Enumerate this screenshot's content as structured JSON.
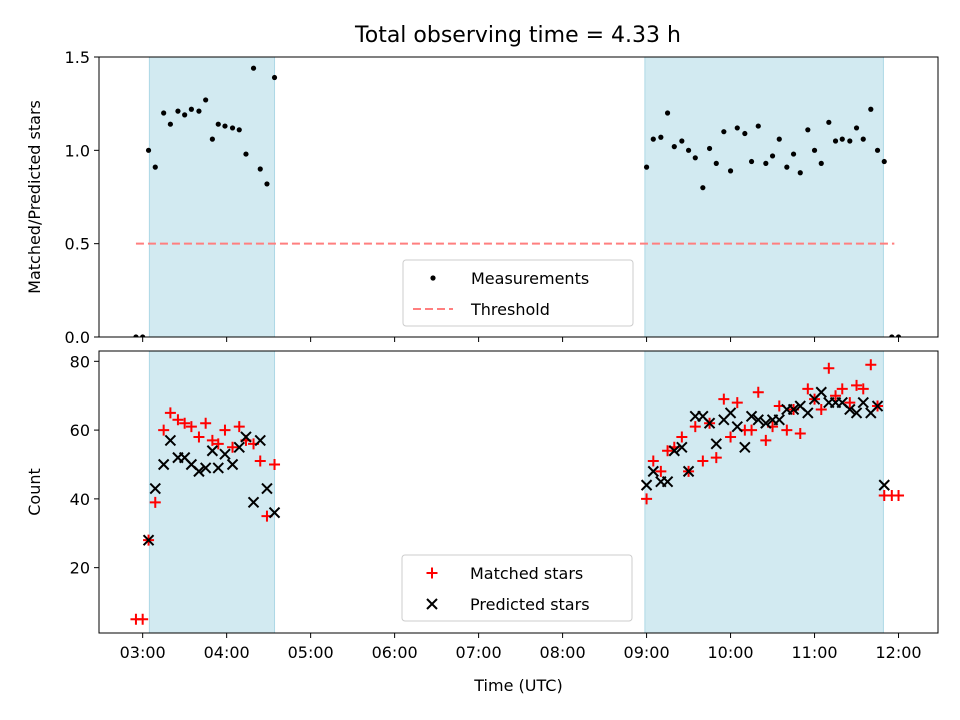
{
  "figure": {
    "title": "Total observing time = 4.33 h"
  },
  "chart_data": [
    {
      "type": "scatter",
      "name": "ratio-panel",
      "ylabel": "Matched/Predicted stars",
      "ylim": [
        0,
        1.5
      ],
      "yticks": [
        0.0,
        0.5,
        1.0,
        1.5
      ],
      "ytick_labels": [
        "0.0",
        "0.5",
        "1.0",
        "1.5"
      ],
      "xlim_hours": [
        2.48,
        12.47
      ],
      "xticks_hours": [
        3,
        4,
        5,
        6,
        7,
        8,
        9,
        10,
        11,
        12
      ],
      "observing_windows": [
        [
          3.08,
          4.57
        ],
        [
          8.98,
          11.82
        ]
      ],
      "window_color": "#add8e6",
      "threshold": {
        "label": "Threshold",
        "value": 0.5,
        "x_range": [
          2.92,
          11.95
        ],
        "color": "#ff7f7f",
        "style": "dashed"
      },
      "series": [
        {
          "name": "Measurements",
          "marker": "dot",
          "color": "#000000",
          "points": [
            [
              2.92,
              0.0
            ],
            [
              3.0,
              0.0
            ],
            [
              3.07,
              1.0
            ],
            [
              3.15,
              0.91
            ],
            [
              3.25,
              1.2
            ],
            [
              3.33,
              1.14
            ],
            [
              3.42,
              1.21
            ],
            [
              3.5,
              1.19
            ],
            [
              3.58,
              1.22
            ],
            [
              3.67,
              1.21
            ],
            [
              3.75,
              1.27
            ],
            [
              3.83,
              1.06
            ],
            [
              3.9,
              1.14
            ],
            [
              3.98,
              1.13
            ],
            [
              4.07,
              1.12
            ],
            [
              4.15,
              1.11
            ],
            [
              4.23,
              0.98
            ],
            [
              4.32,
              1.44
            ],
            [
              4.4,
              0.9
            ],
            [
              4.48,
              0.82
            ],
            [
              4.57,
              1.39
            ],
            [
              9.0,
              0.91
            ],
            [
              9.08,
              1.06
            ],
            [
              9.17,
              1.07
            ],
            [
              9.25,
              1.2
            ],
            [
              9.33,
              1.02
            ],
            [
              9.42,
              1.05
            ],
            [
              9.5,
              1.0
            ],
            [
              9.58,
              0.96
            ],
            [
              9.67,
              0.8
            ],
            [
              9.75,
              1.01
            ],
            [
              9.83,
              0.93
            ],
            [
              9.92,
              1.1
            ],
            [
              10.0,
              0.89
            ],
            [
              10.08,
              1.12
            ],
            [
              10.17,
              1.09
            ],
            [
              10.25,
              0.94
            ],
            [
              10.33,
              1.13
            ],
            [
              10.42,
              0.93
            ],
            [
              10.5,
              0.97
            ],
            [
              10.58,
              1.06
            ],
            [
              10.67,
              0.91
            ],
            [
              10.75,
              0.98
            ],
            [
              10.83,
              0.88
            ],
            [
              10.92,
              1.11
            ],
            [
              11.0,
              1.0
            ],
            [
              11.08,
              0.93
            ],
            [
              11.17,
              1.15
            ],
            [
              11.25,
              1.05
            ],
            [
              11.33,
              1.06
            ],
            [
              11.42,
              1.05
            ],
            [
              11.5,
              1.12
            ],
            [
              11.58,
              1.06
            ],
            [
              11.67,
              1.22
            ],
            [
              11.75,
              1.0
            ],
            [
              11.83,
              0.94
            ],
            [
              11.92,
              0.0
            ],
            [
              12.0,
              0.0
            ]
          ]
        }
      ],
      "legend": {
        "placement": "lower-center",
        "entries": [
          "Measurements",
          "Threshold"
        ]
      }
    },
    {
      "type": "scatter",
      "name": "count-panel",
      "xlabel": "Time (UTC)",
      "ylabel": "Count",
      "ylim": [
        1,
        83
      ],
      "yticks": [
        20,
        40,
        60,
        80
      ],
      "ytick_labels": [
        "20",
        "40",
        "60",
        "80"
      ],
      "xlim_hours": [
        2.48,
        12.47
      ],
      "xticks_hours": [
        3,
        4,
        5,
        6,
        7,
        8,
        9,
        10,
        11,
        12
      ],
      "xtick_labels": [
        "03:00",
        "04:00",
        "05:00",
        "06:00",
        "07:00",
        "08:00",
        "09:00",
        "10:00",
        "11:00",
        "12:00"
      ],
      "observing_windows": [
        [
          3.08,
          4.57
        ],
        [
          8.98,
          11.82
        ]
      ],
      "window_color": "#add8e6",
      "series": [
        {
          "name": "Matched stars",
          "marker": "plus",
          "color": "#ff0000",
          "points": [
            [
              2.92,
              5
            ],
            [
              3.0,
              5
            ],
            [
              3.07,
              28
            ],
            [
              3.15,
              39
            ],
            [
              3.25,
              60
            ],
            [
              3.33,
              65
            ],
            [
              3.42,
              63
            ],
            [
              3.5,
              62
            ],
            [
              3.58,
              61
            ],
            [
              3.67,
              58
            ],
            [
              3.75,
              62
            ],
            [
              3.83,
              57
            ],
            [
              3.9,
              56
            ],
            [
              3.98,
              60
            ],
            [
              4.07,
              55
            ],
            [
              4.15,
              61
            ],
            [
              4.23,
              57
            ],
            [
              4.32,
              56
            ],
            [
              4.4,
              51
            ],
            [
              4.48,
              35
            ],
            [
              4.57,
              50
            ],
            [
              9.0,
              40
            ],
            [
              9.08,
              51
            ],
            [
              9.17,
              48
            ],
            [
              9.25,
              54
            ],
            [
              9.33,
              55
            ],
            [
              9.42,
              58
            ],
            [
              9.5,
              48
            ],
            [
              9.58,
              61
            ],
            [
              9.67,
              51
            ],
            [
              9.75,
              62
            ],
            [
              9.83,
              52
            ],
            [
              9.92,
              69
            ],
            [
              10.0,
              58
            ],
            [
              10.08,
              68
            ],
            [
              10.17,
              60
            ],
            [
              10.25,
              60
            ],
            [
              10.33,
              71
            ],
            [
              10.42,
              57
            ],
            [
              10.5,
              61
            ],
            [
              10.58,
              67
            ],
            [
              10.67,
              60
            ],
            [
              10.75,
              66
            ],
            [
              10.83,
              59
            ],
            [
              10.92,
              72
            ],
            [
              11.0,
              69
            ],
            [
              11.08,
              66
            ],
            [
              11.17,
              78
            ],
            [
              11.25,
              70
            ],
            [
              11.33,
              72
            ],
            [
              11.42,
              68
            ],
            [
              11.5,
              73
            ],
            [
              11.58,
              72
            ],
            [
              11.67,
              79
            ],
            [
              11.75,
              67
            ],
            [
              11.83,
              41
            ],
            [
              11.92,
              41
            ],
            [
              12.0,
              41
            ]
          ]
        },
        {
          "name": "Predicted stars",
          "marker": "x",
          "color": "#000000",
          "points": [
            [
              3.07,
              28
            ],
            [
              3.15,
              43
            ],
            [
              3.25,
              50
            ],
            [
              3.33,
              57
            ],
            [
              3.42,
              52
            ],
            [
              3.5,
              52
            ],
            [
              3.58,
              50
            ],
            [
              3.67,
              48
            ],
            [
              3.75,
              49
            ],
            [
              3.83,
              54
            ],
            [
              3.9,
              49
            ],
            [
              3.98,
              53
            ],
            [
              4.07,
              50
            ],
            [
              4.15,
              55
            ],
            [
              4.23,
              58
            ],
            [
              4.32,
              39
            ],
            [
              4.4,
              57
            ],
            [
              4.48,
              43
            ],
            [
              4.57,
              36
            ],
            [
              9.0,
              44
            ],
            [
              9.08,
              48
            ],
            [
              9.17,
              45
            ],
            [
              9.25,
              45
            ],
            [
              9.33,
              54
            ],
            [
              9.42,
              55
            ],
            [
              9.5,
              48
            ],
            [
              9.58,
              64
            ],
            [
              9.67,
              64
            ],
            [
              9.75,
              62
            ],
            [
              9.83,
              56
            ],
            [
              9.92,
              63
            ],
            [
              10.0,
              65
            ],
            [
              10.08,
              61
            ],
            [
              10.17,
              55
            ],
            [
              10.25,
              64
            ],
            [
              10.33,
              63
            ],
            [
              10.42,
              62
            ],
            [
              10.5,
              63
            ],
            [
              10.58,
              63
            ],
            [
              10.67,
              66
            ],
            [
              10.75,
              66
            ],
            [
              10.83,
              67
            ],
            [
              10.92,
              65
            ],
            [
              11.0,
              69
            ],
            [
              11.08,
              71
            ],
            [
              11.17,
              68
            ],
            [
              11.25,
              68
            ],
            [
              11.33,
              68
            ],
            [
              11.42,
              66
            ],
            [
              11.5,
              65
            ],
            [
              11.58,
              68
            ],
            [
              11.67,
              65
            ],
            [
              11.75,
              67
            ],
            [
              11.83,
              44
            ]
          ]
        }
      ],
      "legend": {
        "placement": "lower-center",
        "entries": [
          "Matched stars",
          "Predicted stars"
        ]
      }
    }
  ]
}
